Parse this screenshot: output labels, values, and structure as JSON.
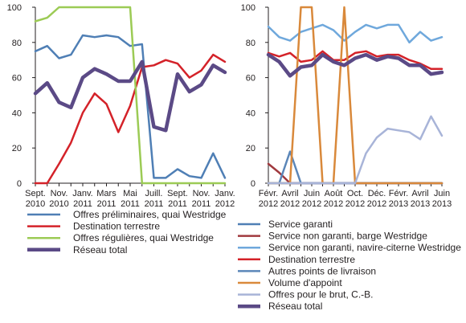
{
  "chart_data": [
    {
      "type": "line",
      "title": "",
      "xlabel": "",
      "ylabel": "",
      "ylim": [
        0,
        100
      ],
      "yticks": [
        "0",
        "20",
        "40",
        "60",
        "80",
        "100"
      ],
      "grid": false,
      "legend_position": "bottom",
      "x_tick_labels": [
        {
          "top": "Sept.",
          "bottom": "2010"
        },
        {
          "top": "Nov.",
          "bottom": "2010"
        },
        {
          "top": "Janv.",
          "bottom": "2011"
        },
        {
          "top": "Mars",
          "bottom": "2011"
        },
        {
          "top": "Mai",
          "bottom": "2011"
        },
        {
          "top": "Juill.",
          "bottom": "2011"
        },
        {
          "top": "Sept.",
          "bottom": "2011"
        },
        {
          "top": "Nov.",
          "bottom": "2011"
        },
        {
          "top": "Janv.",
          "bottom": "2012"
        }
      ],
      "series": [
        {
          "name": "Offres préliminaires, quai Westridge",
          "color": "#4f7fb5",
          "width": 2.5,
          "values": [
            75,
            78,
            71,
            73,
            84,
            83,
            84,
            83,
            78,
            79,
            3,
            3,
            8,
            4,
            3,
            17,
            3
          ]
        },
        {
          "name": "Destination terrestre",
          "color": "#d42229",
          "width": 2.5,
          "values": [
            0,
            0,
            11,
            23,
            40,
            51,
            45,
            29,
            44,
            66,
            67,
            70,
            68,
            60,
            64,
            73,
            69
          ]
        },
        {
          "name": "Offres régulières, quai Westridge",
          "color": "#9ccb55",
          "width": 2.5,
          "values": [
            92,
            94,
            100,
            100,
            100,
            100,
            100,
            100,
            100,
            0,
            0,
            0,
            0,
            0,
            0,
            0,
            0
          ]
        },
        {
          "name": "Réseau total",
          "color": "#5b4a86",
          "width": 4.5,
          "values": [
            51,
            57,
            46,
            43,
            60,
            65,
            62,
            58,
            58,
            69,
            32,
            30,
            62,
            52,
            56,
            67,
            63
          ]
        }
      ]
    },
    {
      "type": "line",
      "title": "",
      "xlabel": "",
      "ylabel": "",
      "ylim": [
        0,
        100
      ],
      "yticks": [
        "0",
        "20",
        "40",
        "60",
        "80",
        "100"
      ],
      "grid": false,
      "legend_position": "bottom",
      "x_tick_labels": [
        {
          "top": "Févr.",
          "bottom": "2012"
        },
        {
          "top": "Avril",
          "bottom": "2012"
        },
        {
          "top": "Juin",
          "bottom": "2012"
        },
        {
          "top": "Août",
          "bottom": "2012"
        },
        {
          "top": "Oct.",
          "bottom": "2012"
        },
        {
          "top": "Déc.",
          "bottom": "2012"
        },
        {
          "top": "Févr.",
          "bottom": "2013"
        },
        {
          "top": "Avril",
          "bottom": "2013"
        },
        {
          "top": "Juin",
          "bottom": "2013"
        }
      ],
      "series": [
        {
          "name": "Service garanti",
          "color": "#4f7fb5",
          "width": 2.5,
          "values": [
            0,
            0,
            0,
            0,
            0,
            0,
            0,
            0,
            0,
            0,
            0,
            0,
            0,
            0,
            0,
            0,
            0
          ]
        },
        {
          "name": "Service non garanti, barge Westridge",
          "color": "#a0393e",
          "width": 2.5,
          "values": [
            11,
            6,
            0,
            0,
            0,
            0,
            0,
            0,
            0,
            0,
            0,
            0,
            0,
            0,
            0,
            0,
            0
          ]
        },
        {
          "name": "Service non garanti, navire-citerne Westridge",
          "color": "#6fa8dc",
          "width": 2.5,
          "values": [
            89,
            83,
            81,
            86,
            88,
            90,
            87,
            81,
            86,
            90,
            88,
            90,
            90,
            80,
            86,
            81,
            83
          ]
        },
        {
          "name": "Destination terrestre",
          "color": "#d42229",
          "width": 2.5,
          "values": [
            74,
            72,
            74,
            69,
            70,
            75,
            70,
            70,
            74,
            75,
            72,
            73,
            73,
            70,
            68,
            65,
            65
          ]
        },
        {
          "name": "Autres points de livraison",
          "color": "#5b86b8",
          "width": 2.5,
          "values": [
            0,
            0,
            18,
            0,
            0,
            0,
            0,
            0,
            0,
            0,
            0,
            0,
            0,
            0,
            0,
            0,
            0
          ]
        },
        {
          "name": "Volume d'appoint",
          "color": "#d9893b",
          "width": 2.5,
          "values": [
            0,
            0,
            0,
            100,
            100,
            0,
            0,
            100,
            0,
            0,
            0,
            0,
            0,
            0,
            0,
            0,
            0
          ]
        },
        {
          "name": "Offres pour le brut, C.-B.",
          "color": "#a8b4d8",
          "width": 2.5,
          "values": [
            0,
            0,
            0,
            0,
            0,
            0,
            0,
            0,
            0,
            17,
            26,
            31,
            30,
            29,
            25,
            38,
            27
          ]
        },
        {
          "name": "Réseau total",
          "color": "#5b4a86",
          "width": 4.5,
          "values": [
            73,
            69,
            61,
            66,
            67,
            73,
            69,
            67,
            71,
            73,
            70,
            72,
            71,
            67,
            67,
            62,
            63
          ]
        }
      ]
    }
  ]
}
